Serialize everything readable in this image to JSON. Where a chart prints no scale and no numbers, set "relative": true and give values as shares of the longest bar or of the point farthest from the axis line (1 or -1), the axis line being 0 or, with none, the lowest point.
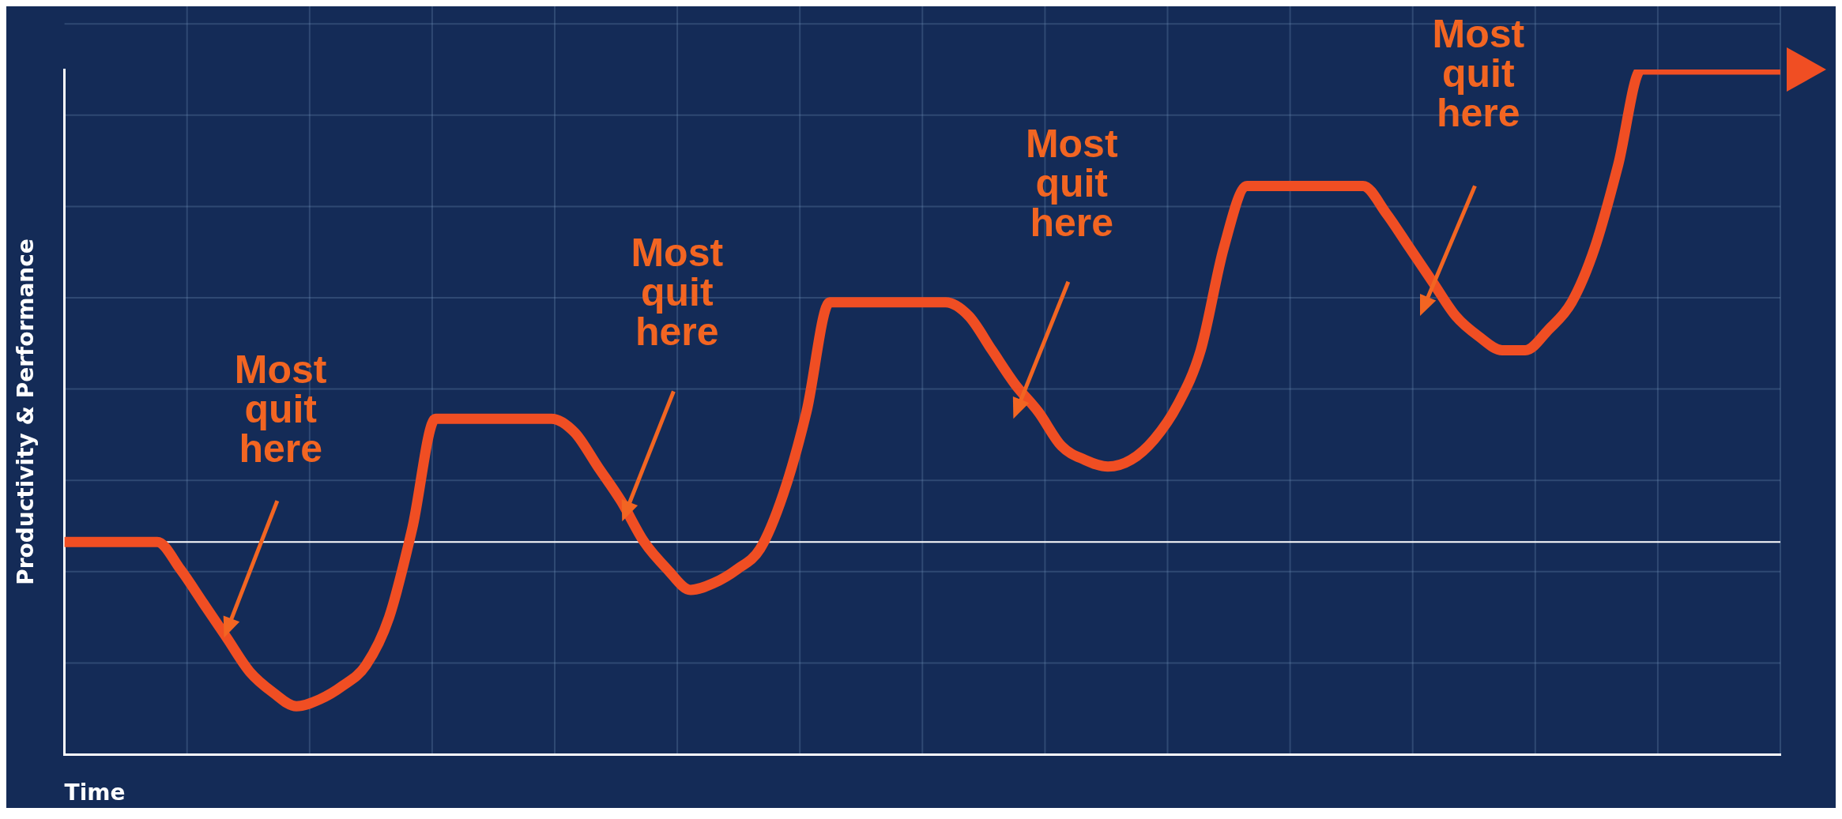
{
  "chart_data": {
    "type": "line",
    "relative": true,
    "xlabel": "Time",
    "ylabel": "Productivity & Performance",
    "color": "#f04e23",
    "grid": true,
    "legend": false,
    "marker": "none",
    "categories": [
      null,
      null,
      null,
      null,
      null,
      null,
      null,
      null,
      null,
      null,
      null,
      null,
      null,
      null,
      null,
      null,
      null,
      null,
      null,
      null,
      null,
      null,
      null,
      null,
      null,
      null,
      null,
      null,
      null,
      null,
      null,
      null,
      null,
      null,
      null,
      null,
      null,
      null,
      null,
      null,
      null,
      null,
      null,
      null,
      null,
      null,
      null,
      null,
      null,
      null,
      null,
      null,
      null,
      null,
      null,
      null,
      null,
      null,
      null,
      null,
      null,
      null,
      null,
      null,
      null,
      null,
      null,
      null,
      null,
      null,
      null,
      null,
      null,
      null,
      null
    ],
    "values": [
      0.31,
      0.31,
      0.31,
      0.31,
      0.31,
      0.27,
      0.22,
      0.17,
      0.12,
      0.09,
      0.07,
      0.08,
      0.1,
      0.13,
      0.2,
      0.33,
      0.49,
      0.49,
      0.49,
      0.49,
      0.49,
      0.49,
      0.47,
      0.42,
      0.37,
      0.31,
      0.27,
      0.24,
      0.25,
      0.27,
      0.3,
      0.38,
      0.5,
      0.66,
      0.66,
      0.66,
      0.66,
      0.66,
      0.66,
      0.64,
      0.59,
      0.54,
      0.5,
      0.45,
      0.43,
      0.42,
      0.43,
      0.46,
      0.51,
      0.59,
      0.74,
      0.83,
      0.83,
      0.83,
      0.83,
      0.83,
      0.83,
      0.79,
      0.74,
      0.69,
      0.64,
      0.61,
      0.59,
      0.59,
      0.62,
      0.66,
      0.74,
      0.86,
      1,
      1,
      1,
      1,
      1,
      1,
      1
    ],
    "ref_lines": [
      {
        "axis": "y",
        "value": 0.31,
        "color": "#ffffff"
      }
    ],
    "annotations": [
      "Most quit here",
      "Most quit here",
      "Most quit here",
      "Most quit here"
    ]
  }
}
